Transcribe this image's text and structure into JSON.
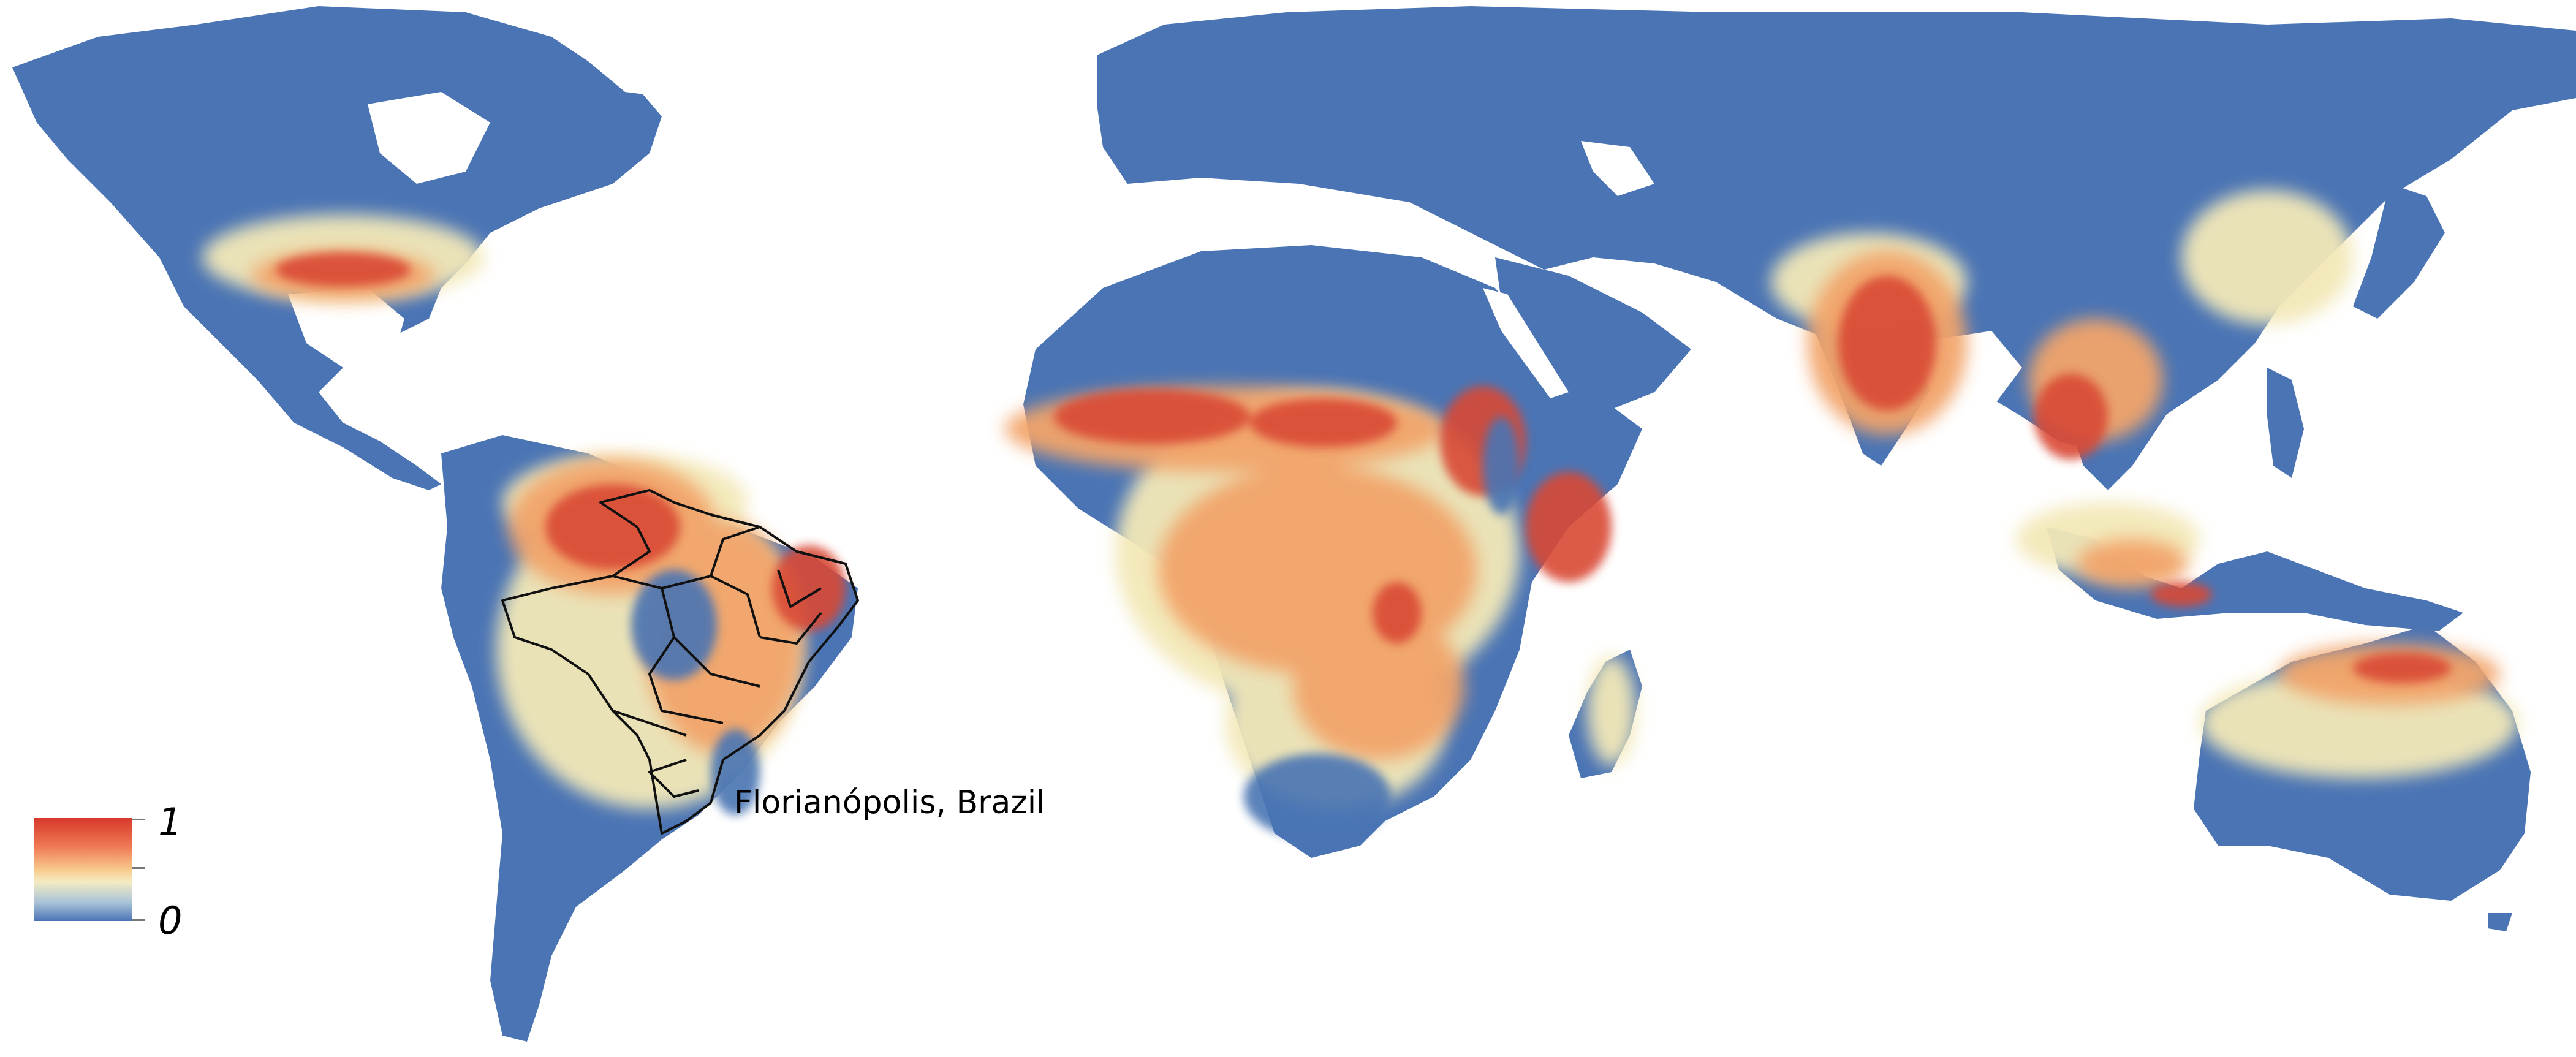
{
  "map": {
    "annotation": "Florianópolis, Brazil",
    "legend": {
      "max_label": "1",
      "min_label": "0"
    },
    "colors": {
      "ocean": "#ffffff",
      "low": "#4a74b4",
      "mid": "#f3e8b8",
      "medium_high": "#f2a46a",
      "high": "#d94a35",
      "borders": "#111111"
    }
  }
}
